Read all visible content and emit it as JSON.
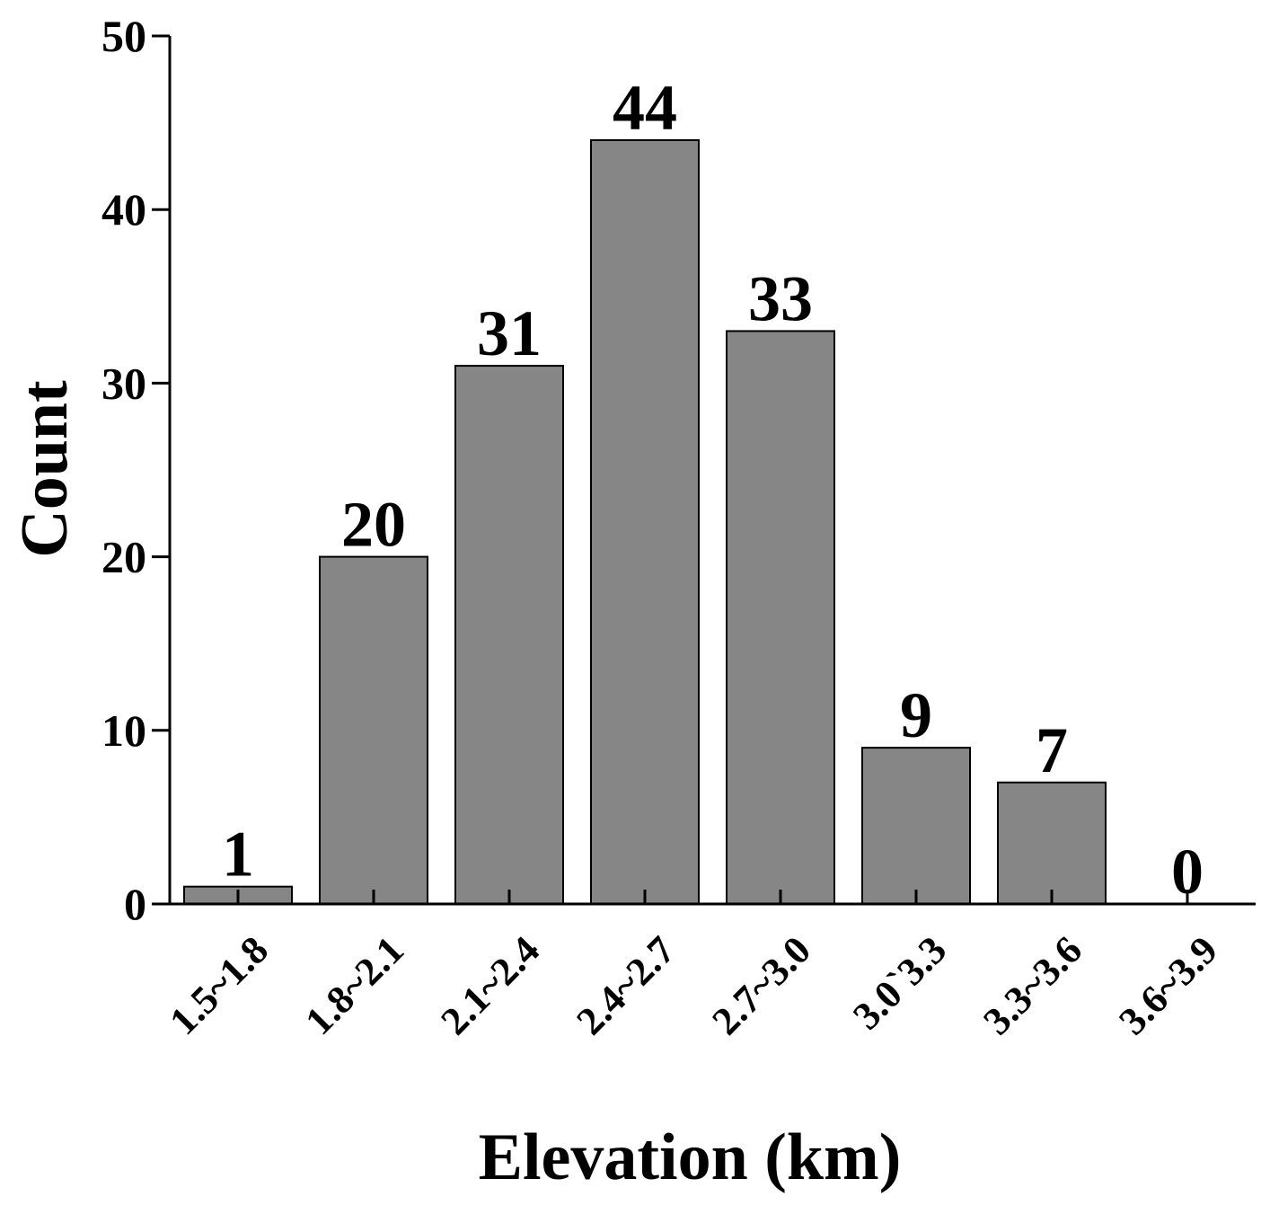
{
  "chart_data": {
    "type": "bar",
    "title": "",
    "xlabel": "Elevation (km)",
    "ylabel": "Count",
    "categories": [
      "1.5~1.8",
      "1.8~2.1",
      "2.1~2.4",
      "2.4~2.7",
      "2.7~3.0",
      "3.0`3.3",
      "3.3~3.6",
      "3.6~3.9"
    ],
    "values": [
      1,
      20,
      31,
      44,
      33,
      9,
      7,
      0
    ],
    "data_labels": [
      "1",
      "20",
      "31",
      "44",
      "33",
      "9",
      "7",
      "0"
    ],
    "ylim": [
      0,
      50
    ],
    "yticks": [
      0,
      10,
      20,
      30,
      40,
      50
    ],
    "ytick_labels": [
      "0",
      "10",
      "20",
      "30",
      "40",
      "50"
    ],
    "bar_color": "#868686",
    "grid": false,
    "legend": "none"
  }
}
